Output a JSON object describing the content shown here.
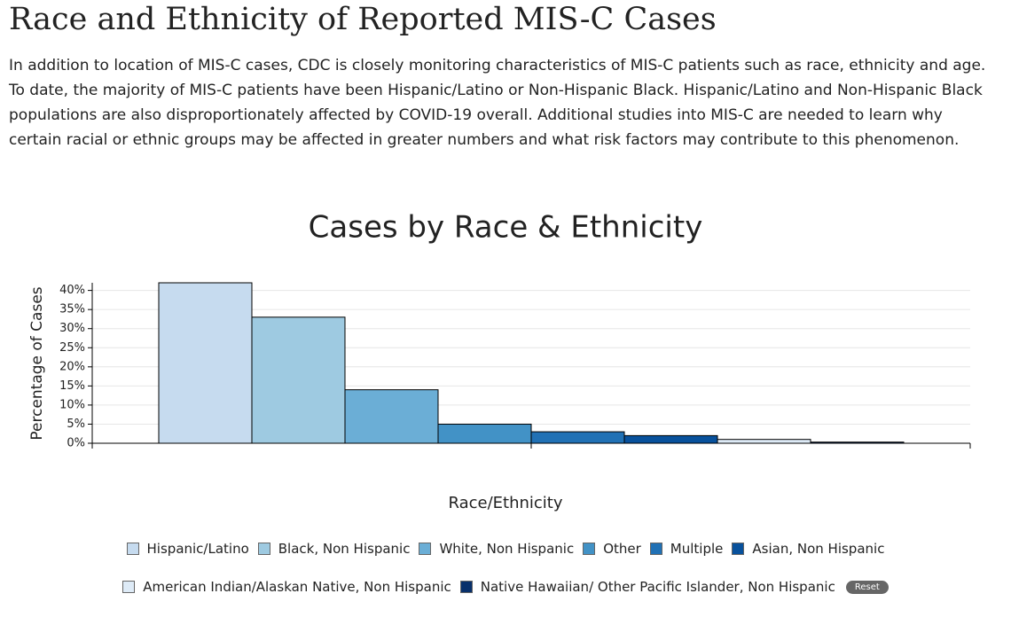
{
  "header": {
    "title": "Race and Ethnicity of Reported MIS-C Cases",
    "text": "In addition to location of MIS-C cases, CDC is closely monitoring characteristics of MIS-C patients such as race, ethnicity and age. To date, the majority of MIS-C patients have been Hispanic/Latino or Non-Hispanic Black. Hispanic/Latino and Non-Hispanic Black populations are also disproportionately affected by COVID-19 overall. Additional studies into MIS-C are needed to learn why certain racial or ethnic groups may be affected in greater numbers and what risk factors may contribute to this phenomenon."
  },
  "chart_data": {
    "type": "bar",
    "title": "Cases by Race & Ethnicity",
    "x_label": "Race/Ethnicity",
    "y_label": "Percentage of Cases",
    "categories": [
      "Hispanic/Latino",
      "Black, Non Hispanic",
      "White, Non Hispanic",
      "Other",
      "Multiple",
      "Asian, Non Hispanic",
      "American Indian/Alaskan Native, Non Hispanic",
      "Native Hawaiian/ Other Pacific Islander, Non Hispanic"
    ],
    "values": [
      42,
      33,
      14,
      5,
      3,
      2,
      1,
      0.3
    ],
    "colors": [
      "#c6dbef",
      "#9ecae1",
      "#6baed6",
      "#4292c6",
      "#2171b5",
      "#08519c",
      "#deebf7",
      "#08306b"
    ],
    "ylim": [
      0,
      42
    ],
    "yticks": [
      {
        "value": 0,
        "label": "0%"
      },
      {
        "value": 5,
        "label": "5%"
      },
      {
        "value": 10,
        "label": "10%"
      },
      {
        "value": 15,
        "label": "15%"
      },
      {
        "value": 20,
        "label": "20%"
      },
      {
        "value": 25,
        "label": "25%"
      },
      {
        "value": 30,
        "label": "30%"
      },
      {
        "value": 35,
        "label": "35%"
      },
      {
        "value": 40,
        "label": "40%"
      }
    ],
    "grid": true,
    "reset_button": "Reset"
  }
}
